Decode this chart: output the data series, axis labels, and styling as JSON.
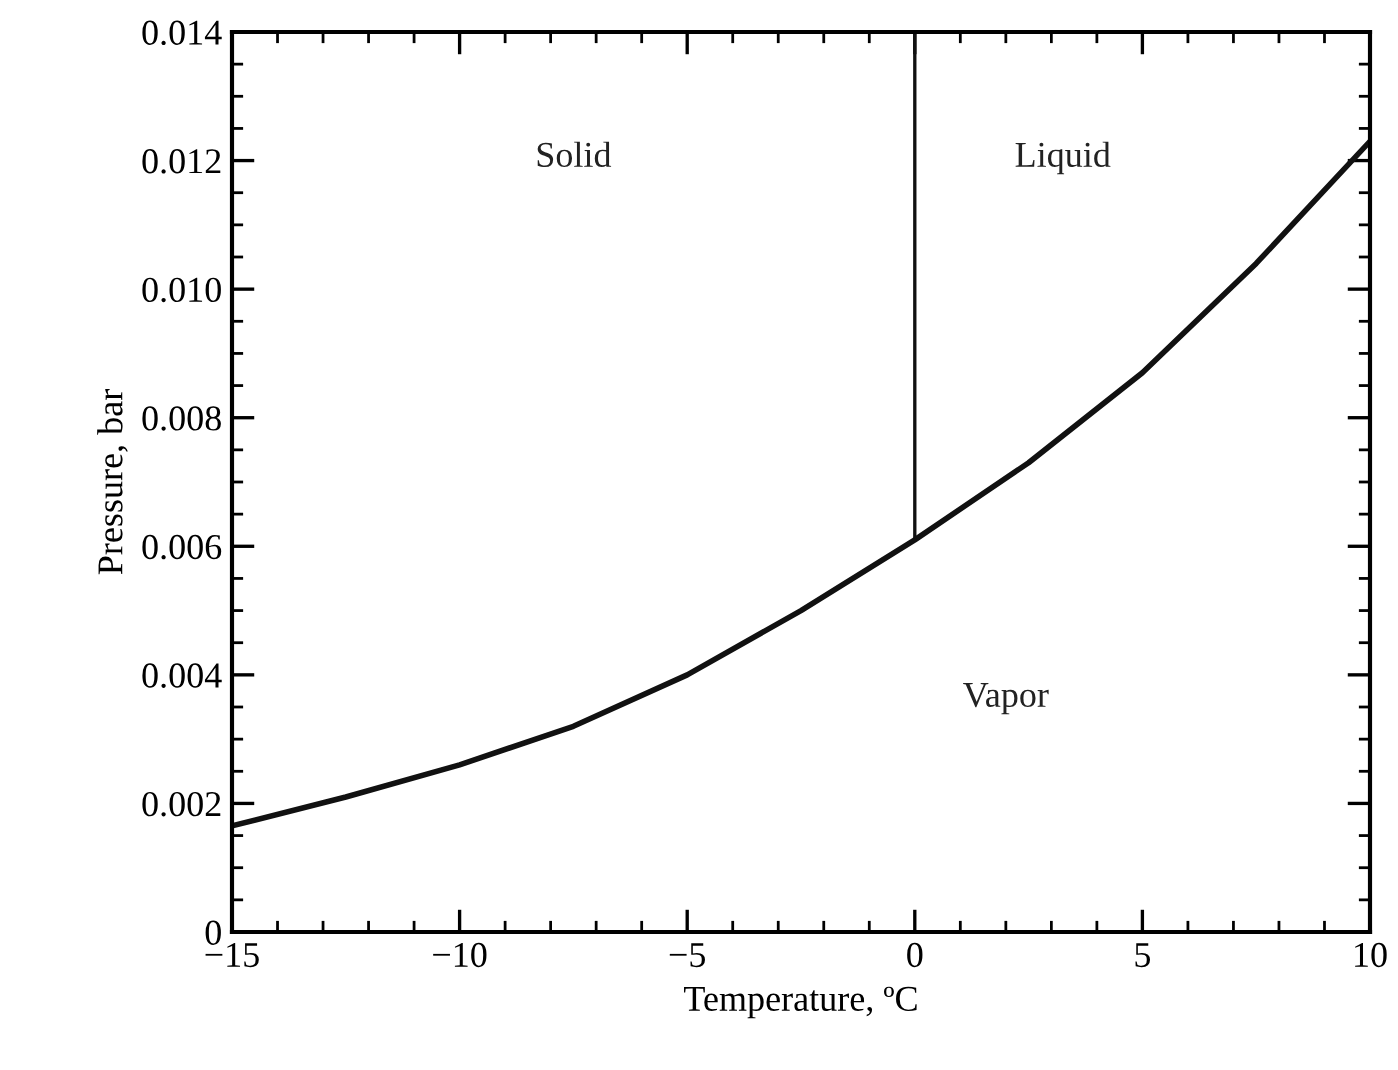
{
  "chart_data": {
    "type": "line",
    "xlabel": "Temperature, ºC",
    "ylabel": "Pressure, bar",
    "series": [
      {
        "color": "#111111",
        "x": [
          -15,
          -12.5,
          -10,
          -7.5,
          -5,
          -2.5,
          0,
          2.5,
          5,
          7.5,
          10
        ],
        "values": [
          0.00165,
          0.0021,
          0.0026,
          0.0032,
          0.004,
          0.005,
          0.0061,
          0.0073,
          0.0087,
          0.0104,
          0.0123
        ]
      },
      {
        "color": "#111111",
        "x": [
          0,
          0
        ],
        "values": [
          0.0061,
          0.014
        ]
      }
    ],
    "annotations": [
      "Solid",
      "Liquid",
      "Vapor"
    ],
    "xlim": [
      -15,
      10
    ],
    "ylim": [
      0,
      0.014
    ],
    "xticks": [
      {
        "value": -15,
        "label": "−15"
      },
      {
        "value": -10,
        "label": "−10"
      },
      {
        "value": -5,
        "label": "−5"
      },
      0,
      5,
      10
    ],
    "yticks": [
      0,
      {
        "value": 0.002,
        "label": "0.002"
      },
      {
        "value": 0.004,
        "label": "0.004"
      },
      {
        "value": 0.006,
        "label": "0.006"
      },
      {
        "value": 0.008,
        "label": "0.008"
      },
      {
        "value": 0.01,
        "label": "0.010"
      },
      {
        "value": 0.012,
        "label": "0.012"
      },
      {
        "value": 0.014,
        "label": "0.014"
      }
    ],
    "grid": false,
    "legend": false,
    "marker": "none",
    "line_style": "solid"
  }
}
